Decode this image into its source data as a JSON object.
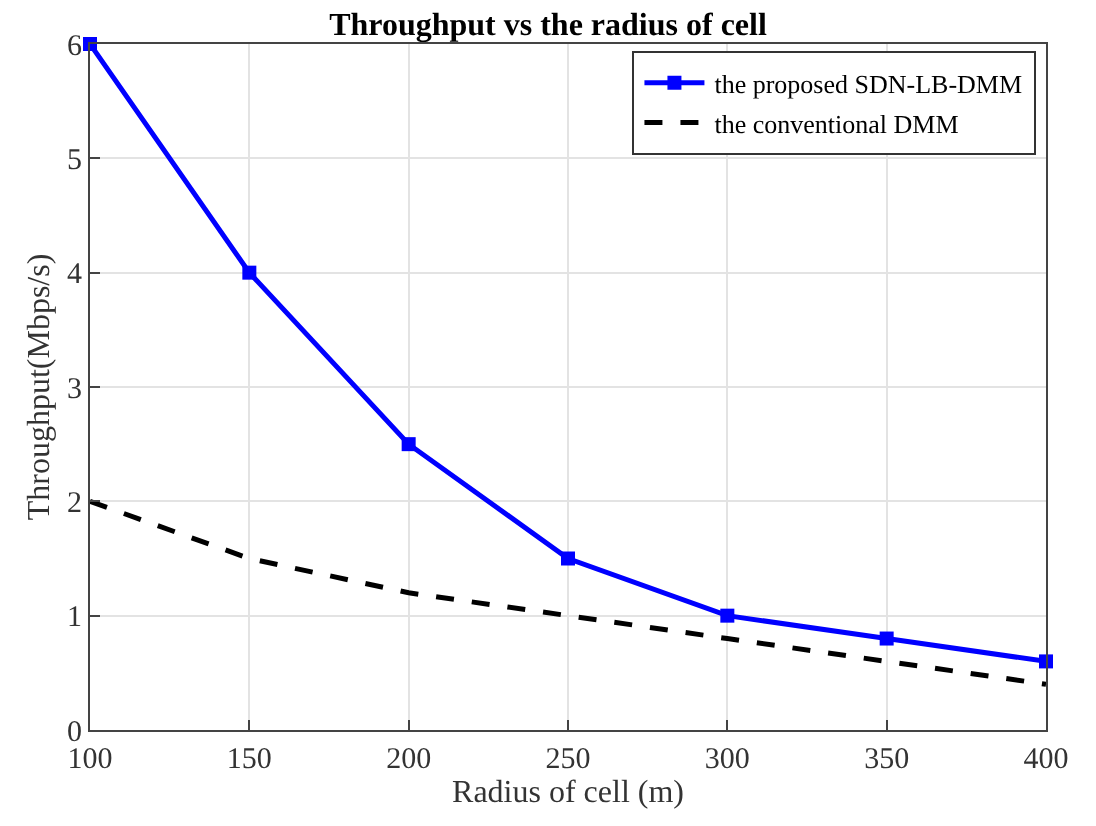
{
  "chart_data": {
    "type": "line",
    "title": "Throughput vs the radius of cell",
    "xlabel": "Radius of cell (m)",
    "ylabel": "Throughput(Mbps/s)",
    "x": [
      100,
      150,
      200,
      250,
      300,
      350,
      400
    ],
    "series": [
      {
        "name": "the proposed SDN-LB-DMM",
        "color": "#0000ff",
        "values": [
          6,
          4,
          2.5,
          1.5,
          1,
          0.8,
          0.6
        ],
        "marker": "square",
        "line_style": "solid"
      },
      {
        "name": "the conventional DMM",
        "color": "#000000",
        "values": [
          2,
          1.5,
          1.2,
          1.0,
          0.8,
          0.6,
          0.4
        ],
        "marker": "none",
        "line_style": "dashed"
      }
    ],
    "xlim": [
      100,
      400
    ],
    "xticks": [
      100,
      150,
      200,
      250,
      300,
      350,
      400
    ],
    "ylim": [
      0,
      6
    ],
    "yticks": [
      0,
      1,
      2,
      3,
      4,
      5,
      6
    ],
    "grid": true,
    "legend": "top right"
  }
}
